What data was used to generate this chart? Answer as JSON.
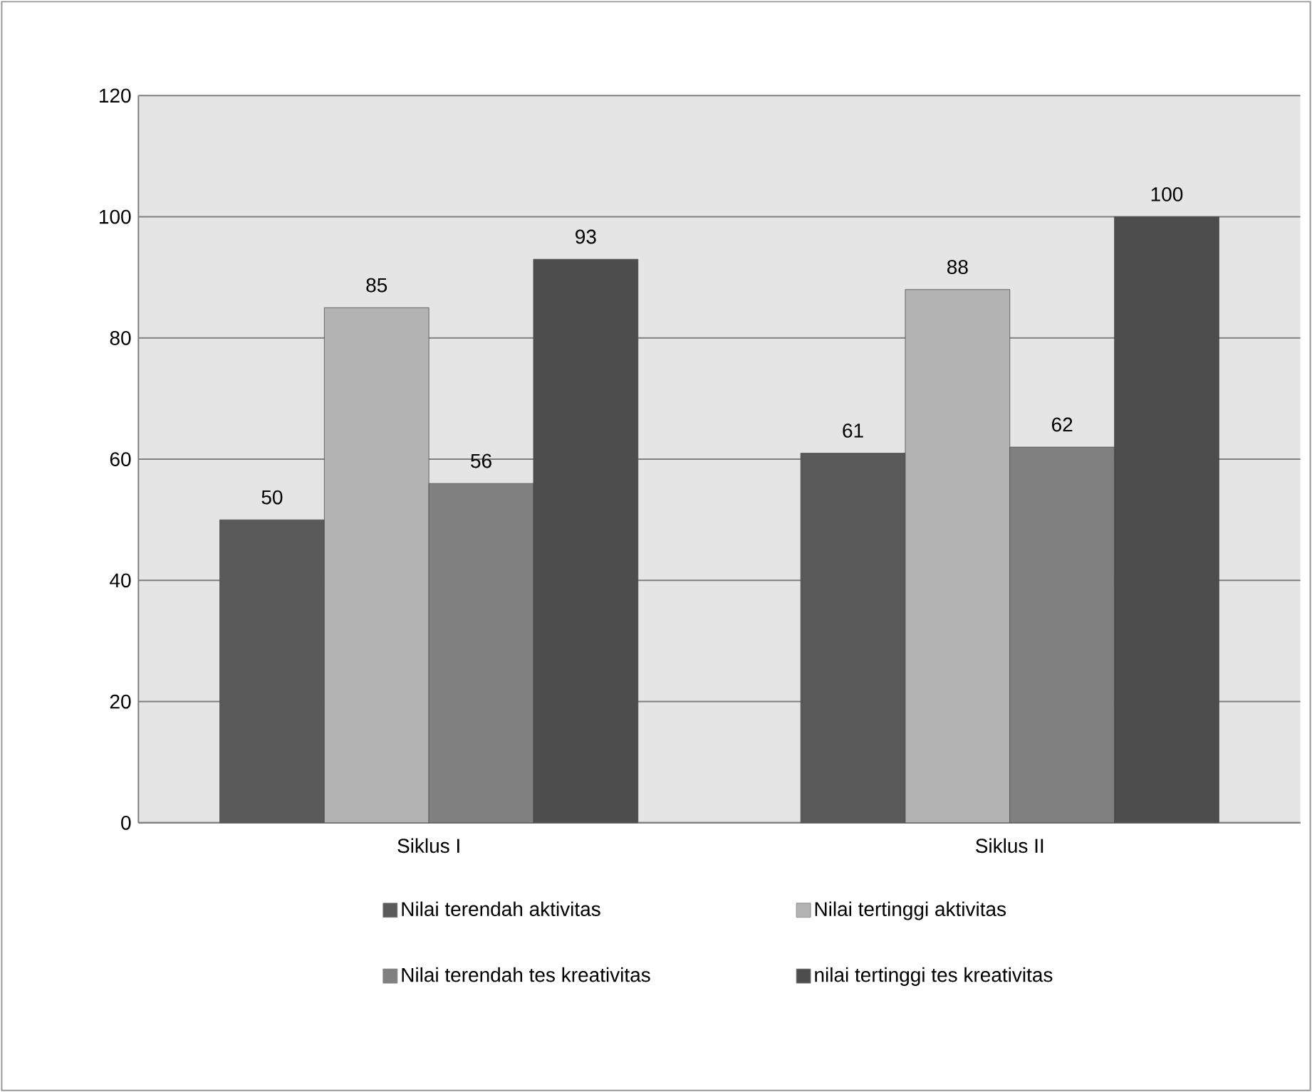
{
  "chart_data": {
    "type": "bar",
    "categories": [
      "Siklus I",
      "Siklus II"
    ],
    "series": [
      {
        "name": "Nilai terendah aktivitas",
        "color": "#595959",
        "values": [
          50,
          61
        ]
      },
      {
        "name": "Nilai tertinggi aktivitas",
        "color": "#b3b3b3",
        "values": [
          85,
          88
        ]
      },
      {
        "name": "Nilai terendah tes kreativitas",
        "color": "#808080",
        "values": [
          56,
          62
        ]
      },
      {
        "name": "nilai tertinggi tes kreativitas",
        "color": "#4d4d4d",
        "values": [
          93,
          100
        ]
      }
    ],
    "ylim": [
      0,
      120
    ],
    "yticks": [
      0,
      20,
      40,
      60,
      80,
      100,
      120
    ],
    "grid": "y",
    "legend": "bottom",
    "data_labels": true
  }
}
